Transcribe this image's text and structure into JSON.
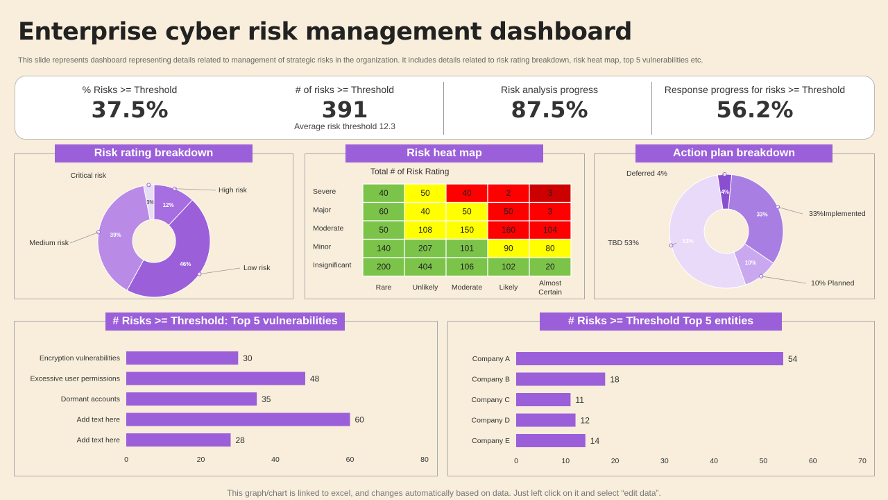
{
  "title": "Enterprise cyber risk management dashboard",
  "subtitle": "This slide represents dashboard representing details related to management of strategic risks in the organization. It includes details related to risk rating breakdown, risk heat map, top 5 vulnerabilities etc.",
  "kpis": [
    {
      "label": "% Risks >= Threshold",
      "value": "37.5%",
      "note": ""
    },
    {
      "label": "# of risks >= Threshold",
      "value": "391",
      "note": "Average risk threshold 12.3"
    },
    {
      "label": "Risk analysis progress",
      "value": "87.5%",
      "note": ""
    },
    {
      "label": "Response progress for risks >= Threshold",
      "value": "56.2%",
      "note": ""
    }
  ],
  "panels": {
    "risk_rating": "Risk rating breakdown",
    "heat_map": "Risk heat map",
    "action_plan": "Action plan breakdown",
    "vulnerabilities": "# Risks >= Threshold: Top 5 vulnerabilities",
    "entities": "# Risks >= Threshold Top 5 entities"
  },
  "footer": "This graph/chart is linked to excel, and changes automatically based on data. Just left click on it and select “edit data”.",
  "chart_data": [
    {
      "type": "pie",
      "title": "Risk rating breakdown",
      "slices": [
        {
          "label": "Critical risk",
          "value": 3,
          "text": "3%",
          "color": "#e9dcf5"
        },
        {
          "label": "High risk",
          "value": 12,
          "text": "12%",
          "color": "#a66ee0"
        },
        {
          "label": "Low risk",
          "value": 46,
          "text": "46%",
          "color": "#9b5fd9"
        },
        {
          "label": "Medium risk",
          "value": 39,
          "text": "39%",
          "color": "#b98ae6"
        }
      ]
    },
    {
      "type": "heatmap",
      "title": "Total # of Risk Rating",
      "rows": [
        "Severe",
        "Major",
        "Moderate",
        "Minor",
        "Insignificant"
      ],
      "cols": [
        "Rare",
        "Unlikely",
        "Moderate",
        "Likely",
        "Almost Certain"
      ],
      "values": [
        [
          40,
          50,
          40,
          2,
          3
        ],
        [
          60,
          40,
          50,
          50,
          3
        ],
        [
          50,
          108,
          150,
          160,
          104
        ],
        [
          140,
          207,
          101,
          90,
          80
        ],
        [
          200,
          404,
          106,
          102,
          20
        ]
      ],
      "colors": [
        [
          "#7cc34a",
          "#ffff00",
          "#ff0000",
          "#ff0000",
          "#cc0000"
        ],
        [
          "#7cc34a",
          "#ffff00",
          "#ffff00",
          "#ff0000",
          "#ff0000"
        ],
        [
          "#7cc34a",
          "#ffff00",
          "#ffff00",
          "#ff0000",
          "#ff0000"
        ],
        [
          "#7cc34a",
          "#7cc34a",
          "#7cc34a",
          "#ffff00",
          "#ffff00"
        ],
        [
          "#7cc34a",
          "#7cc34a",
          "#7cc34a",
          "#7cc34a",
          "#7cc34a"
        ]
      ]
    },
    {
      "type": "pie",
      "title": "Action plan breakdown",
      "slices": [
        {
          "label": "Deferred 4%",
          "value": 4,
          "text": "4%",
          "color": "#8a4fd0"
        },
        {
          "label": "33%Implemented",
          "value": 33,
          "text": "33%",
          "color": "#a97ee3"
        },
        {
          "label": "10% Planned",
          "value": 10,
          "text": "10%",
          "color": "#c9a8ef"
        },
        {
          "label": "TBD 53%",
          "value": 53,
          "text": "53%",
          "color": "#e8daf8"
        }
      ]
    },
    {
      "type": "bar",
      "title": "# Risks >= Threshold: Top 5 vulnerabilities",
      "categories": [
        "Encryption vulnerabilities",
        "Excessive user permissions",
        "Dormant accounts",
        "Add text here",
        "Add text here"
      ],
      "values": [
        30,
        48,
        35,
        60,
        28
      ],
      "xlim": [
        0,
        80
      ],
      "ticks": [
        0,
        20,
        40,
        60,
        80
      ],
      "color": "#9b5fd9"
    },
    {
      "type": "bar",
      "title": "# Risks >= Threshold Top 5 entities",
      "categories": [
        "Company A",
        "Company B",
        "Company C",
        "Company D",
        "Company E"
      ],
      "values": [
        54,
        18,
        11,
        12,
        14
      ],
      "xlim": [
        0,
        70
      ],
      "ticks": [
        0,
        10,
        20,
        30,
        40,
        50,
        60,
        70
      ],
      "color": "#9b5fd9"
    }
  ]
}
